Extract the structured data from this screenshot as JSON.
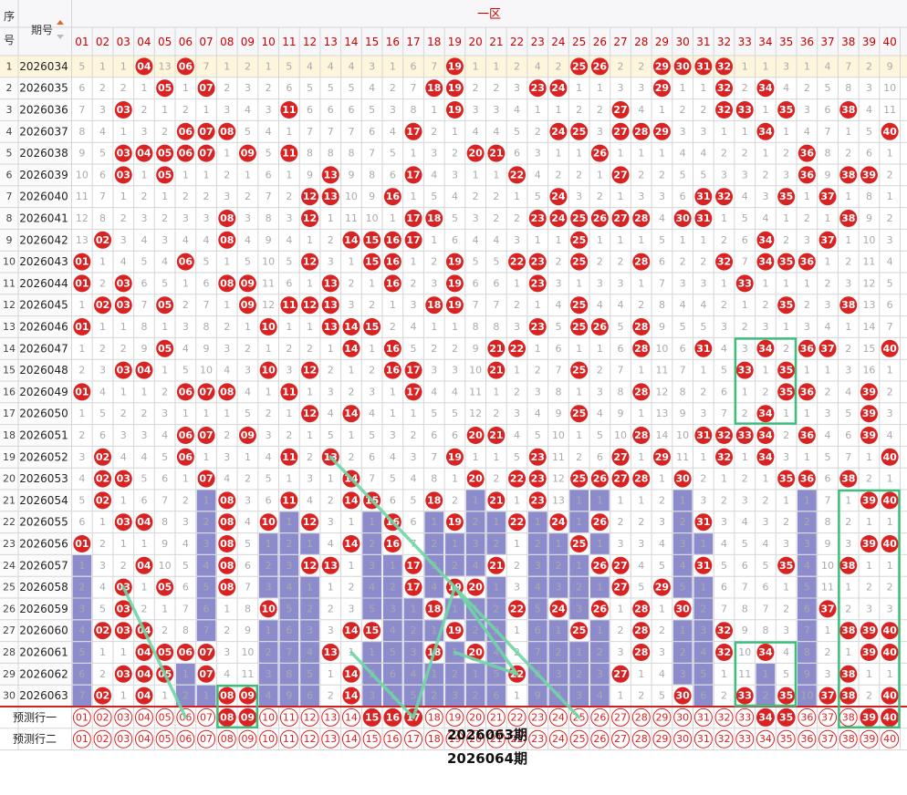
{
  "header": {
    "seq_label": "序号",
    "period_label": "期号",
    "zone_label": "一区",
    "predict_row_1": "预测行一",
    "predict_row_2": "预测行二",
    "annotation_1": "2026063期",
    "annotation_2": "2026064期"
  },
  "colors": {
    "ball_red": "#d92222",
    "bar_blue": "#8c8ccc",
    "zone_red": "#cc0000",
    "box_green": "#3cbf7a",
    "line_green": "#6fd6a6",
    "grid": "#d6d6d6",
    "miss_text": "#aaaaaa"
  },
  "chart_data": {
    "type": "table",
    "columns": [
      "01",
      "02",
      "03",
      "04",
      "05",
      "06",
      "07",
      "08",
      "09",
      "10",
      "11",
      "12",
      "13",
      "14",
      "15",
      "16",
      "17",
      "18",
      "19",
      "20",
      "21",
      "22",
      "23",
      "24",
      "25",
      "26",
      "27",
      "28",
      "29",
      "30",
      "31",
      "32",
      "33",
      "34",
      "35",
      "36",
      "37",
      "38",
      "39",
      "40"
    ],
    "rows": [
      {
        "seq": "1",
        "period": "2026034",
        "cells": [
          5,
          1,
          1,
          0,
          13,
          0,
          7,
          1,
          2,
          1,
          5,
          4,
          4,
          4,
          3,
          1,
          6,
          7,
          0,
          1,
          1,
          2,
          4,
          2,
          0,
          0,
          2,
          2,
          0,
          0,
          0,
          0,
          1,
          1,
          3,
          1,
          4,
          7,
          2,
          9
        ]
      },
      {
        "seq": "2",
        "period": "2026035",
        "cells": [
          6,
          2,
          2,
          1,
          0,
          1,
          0,
          2,
          3,
          2,
          6,
          5,
          5,
          5,
          4,
          2,
          7,
          0,
          0,
          2,
          2,
          3,
          0,
          0,
          1,
          1,
          3,
          3,
          0,
          1,
          1,
          0,
          2,
          0,
          4,
          2,
          5,
          8,
          3,
          10
        ]
      },
      {
        "seq": "3",
        "period": "2026036",
        "cells": [
          7,
          3,
          0,
          2,
          1,
          2,
          1,
          3,
          4,
          3,
          0,
          6,
          6,
          6,
          5,
          3,
          8,
          1,
          0,
          3,
          3,
          4,
          1,
          1,
          2,
          2,
          0,
          4,
          1,
          2,
          2,
          0,
          0,
          1,
          0,
          3,
          6,
          0,
          4,
          11
        ]
      },
      {
        "seq": "4",
        "period": "2026037",
        "cells": [
          8,
          4,
          1,
          3,
          2,
          0,
          0,
          0,
          5,
          4,
          1,
          7,
          7,
          7,
          6,
          4,
          0,
          2,
          1,
          4,
          4,
          5,
          2,
          0,
          0,
          3,
          0,
          0,
          0,
          3,
          3,
          1,
          1,
          0,
          1,
          4,
          7,
          1,
          5,
          0
        ]
      },
      {
        "seq": "5",
        "period": "2026038",
        "cells": [
          9,
          5,
          0,
          0,
          0,
          0,
          0,
          1,
          0,
          5,
          0,
          8,
          8,
          8,
          7,
          5,
          1,
          3,
          2,
          0,
          0,
          6,
          3,
          1,
          1,
          0,
          1,
          1,
          1,
          4,
          4,
          2,
          2,
          1,
          2,
          0,
          8,
          2,
          6,
          1
        ]
      },
      {
        "seq": "6",
        "period": "2026039",
        "cells": [
          10,
          6,
          0,
          1,
          0,
          1,
          1,
          2,
          1,
          6,
          1,
          9,
          0,
          9,
          8,
          6,
          0,
          4,
          3,
          1,
          1,
          0,
          4,
          2,
          2,
          1,
          0,
          2,
          2,
          5,
          5,
          3,
          3,
          2,
          3,
          0,
          9,
          0,
          0,
          2
        ]
      },
      {
        "seq": "7",
        "period": "2026040",
        "cells": [
          11,
          7,
          1,
          2,
          1,
          2,
          2,
          3,
          2,
          7,
          2,
          0,
          0,
          10,
          9,
          0,
          1,
          5,
          4,
          2,
          2,
          1,
          5,
          0,
          3,
          2,
          1,
          3,
          3,
          6,
          0,
          0,
          4,
          3,
          0,
          1,
          0,
          1,
          8,
          1
        ]
      },
      {
        "seq": "8",
        "period": "2026041",
        "cells": [
          12,
          8,
          2,
          3,
          2,
          3,
          3,
          0,
          3,
          8,
          3,
          0,
          1,
          11,
          10,
          1,
          0,
          0,
          5,
          3,
          2,
          2,
          0,
          0,
          0,
          0,
          0,
          0,
          4,
          0,
          0,
          1,
          5,
          4,
          1,
          2,
          1,
          0,
          9,
          2
        ]
      },
      {
        "seq": "9",
        "period": "2026042",
        "cells": [
          13,
          0,
          3,
          4,
          3,
          4,
          4,
          0,
          4,
          9,
          4,
          1,
          2,
          0,
          0,
          0,
          0,
          1,
          6,
          4,
          4,
          3,
          1,
          1,
          0,
          1,
          1,
          1,
          5,
          1,
          1,
          2,
          6,
          0,
          2,
          3,
          0,
          1,
          10,
          3
        ]
      },
      {
        "seq": "10",
        "period": "2026043",
        "cells": [
          0,
          1,
          4,
          5,
          4,
          0,
          5,
          1,
          5,
          10,
          5,
          0,
          3,
          1,
          0,
          0,
          1,
          2,
          0,
          5,
          5,
          0,
          0,
          2,
          0,
          2,
          2,
          0,
          6,
          2,
          2,
          0,
          7,
          0,
          0,
          0,
          1,
          2,
          11,
          4
        ]
      },
      {
        "seq": "11",
        "period": "2026044",
        "cells": [
          0,
          2,
          0,
          6,
          5,
          1,
          6,
          0,
          0,
          11,
          6,
          1,
          0,
          2,
          1,
          0,
          2,
          3,
          0,
          6,
          6,
          1,
          0,
          3,
          1,
          3,
          3,
          1,
          7,
          3,
          3,
          1,
          0,
          1,
          1,
          1,
          2,
          3,
          12,
          5
        ]
      },
      {
        "seq": "12",
        "period": "2026045",
        "cells": [
          1,
          0,
          0,
          7,
          0,
          2,
          7,
          1,
          0,
          12,
          0,
          0,
          0,
          3,
          2,
          1,
          3,
          0,
          0,
          7,
          7,
          2,
          1,
          4,
          0,
          4,
          4,
          2,
          8,
          4,
          4,
          2,
          1,
          2,
          0,
          2,
          3,
          0,
          13,
          6
        ]
      },
      {
        "seq": "13",
        "period": "2026046",
        "cells": [
          0,
          1,
          1,
          8,
          1,
          3,
          8,
          2,
          1,
          0,
          1,
          1,
          0,
          0,
          0,
          2,
          4,
          1,
          1,
          8,
          8,
          3,
          0,
          5,
          0,
          0,
          5,
          0,
          9,
          5,
          5,
          3,
          2,
          3,
          1,
          3,
          4,
          1,
          14,
          7
        ]
      },
      {
        "seq": "14",
        "period": "2026047",
        "cells": [
          1,
          2,
          2,
          9,
          0,
          4,
          9,
          3,
          2,
          1,
          2,
          2,
          1,
          0,
          1,
          0,
          5,
          2,
          2,
          9,
          0,
          0,
          1,
          6,
          1,
          1,
          6,
          0,
          10,
          6,
          0,
          4,
          3,
          0,
          2,
          0,
          0,
          2,
          15,
          0
        ]
      },
      {
        "seq": "15",
        "period": "2026048",
        "cells": [
          2,
          3,
          0,
          0,
          1,
          5,
          10,
          4,
          3,
          0,
          3,
          0,
          2,
          1,
          2,
          0,
          0,
          3,
          3,
          10,
          0,
          1,
          2,
          7,
          0,
          2,
          7,
          1,
          11,
          7,
          1,
          5,
          0,
          1,
          0,
          1,
          1,
          3,
          16,
          1
        ]
      },
      {
        "seq": "16",
        "period": "2026049",
        "cells": [
          0,
          4,
          1,
          1,
          2,
          0,
          0,
          0,
          4,
          1,
          0,
          1,
          3,
          2,
          3,
          1,
          0,
          4,
          4,
          11,
          1,
          2,
          3,
          8,
          1,
          3,
          8,
          0,
          12,
          8,
          2,
          6,
          1,
          2,
          0,
          0,
          2,
          4,
          0,
          2
        ]
      },
      {
        "seq": "17",
        "period": "2026050",
        "cells": [
          1,
          5,
          2,
          2,
          3,
          1,
          1,
          1,
          5,
          2,
          1,
          0,
          4,
          0,
          4,
          1,
          1,
          5,
          5,
          12,
          2,
          3,
          4,
          9,
          0,
          4,
          9,
          1,
          13,
          9,
          3,
          7,
          2,
          0,
          1,
          1,
          3,
          5,
          0,
          3
        ]
      },
      {
        "seq": "18",
        "period": "2026051",
        "cells": [
          2,
          6,
          3,
          3,
          4,
          0,
          0,
          2,
          0,
          3,
          2,
          1,
          5,
          1,
          5,
          3,
          2,
          6,
          6,
          0,
          0,
          4,
          5,
          10,
          1,
          5,
          10,
          0,
          14,
          10,
          0,
          0,
          0,
          0,
          2,
          0,
          4,
          6,
          0,
          4
        ]
      },
      {
        "seq": "19",
        "period": "2026052",
        "cells": [
          3,
          0,
          4,
          4,
          5,
          0,
          1,
          3,
          1,
          4,
          0,
          2,
          0,
          2,
          6,
          4,
          3,
          7,
          0,
          1,
          1,
          5,
          0,
          11,
          2,
          6,
          0,
          1,
          0,
          11,
          1,
          0,
          1,
          0,
          3,
          1,
          5,
          7,
          1,
          0
        ]
      },
      {
        "seq": "20",
        "period": "2026053",
        "cells": [
          4,
          0,
          0,
          5,
          6,
          1,
          0,
          4,
          2,
          5,
          1,
          3,
          1,
          0,
          7,
          5,
          4,
          8,
          1,
          0,
          2,
          0,
          0,
          12,
          0,
          0,
          0,
          0,
          1,
          0,
          2,
          1,
          2,
          1,
          0,
          0,
          6,
          0,
          2,
          1
        ]
      },
      {
        "seq": "21",
        "period": "2026054",
        "cells": [
          5,
          0,
          1,
          6,
          7,
          2,
          1,
          0,
          3,
          6,
          0,
          4,
          2,
          0,
          0,
          6,
          5,
          0,
          2,
          1,
          0,
          1,
          0,
          13,
          1,
          1,
          1,
          1,
          2,
          1,
          3,
          2,
          3,
          2,
          1,
          1,
          7,
          1,
          0,
          0
        ]
      },
      {
        "seq": "22",
        "period": "2026055",
        "cells": [
          6,
          1,
          0,
          0,
          8,
          3,
          2,
          0,
          4,
          0,
          1,
          0,
          3,
          1,
          1,
          0,
          6,
          1,
          0,
          2,
          1,
          0,
          1,
          0,
          1,
          0,
          2,
          2,
          3,
          2,
          0,
          3,
          4,
          3,
          2,
          2,
          8,
          2,
          1,
          1
        ]
      },
      {
        "seq": "23",
        "period": "2026056",
        "cells": [
          0,
          2,
          1,
          1,
          9,
          4,
          3,
          0,
          5,
          1,
          2,
          1,
          4,
          0,
          2,
          0,
          7,
          2,
          1,
          3,
          2,
          1,
          2,
          1,
          0,
          1,
          3,
          3,
          4,
          3,
          1,
          4,
          5,
          4,
          3,
          3,
          9,
          3,
          0,
          0
        ]
      },
      {
        "seq": "24",
        "period": "2026057",
        "cells": [
          1,
          3,
          2,
          0,
          10,
          5,
          4,
          0,
          6,
          2,
          3,
          0,
          0,
          1,
          3,
          1,
          0,
          3,
          2,
          4,
          0,
          2,
          3,
          2,
          1,
          0,
          0,
          4,
          5,
          4,
          0,
          5,
          6,
          5,
          0,
          4,
          10,
          0,
          1,
          1
        ]
      },
      {
        "seq": "25",
        "period": "2026058",
        "cells": [
          2,
          4,
          0,
          1,
          0,
          6,
          5,
          0,
          7,
          3,
          4,
          1,
          1,
          2,
          4,
          2,
          0,
          4,
          0,
          0,
          1,
          3,
          4,
          3,
          2,
          1,
          0,
          5,
          0,
          5,
          1,
          6,
          7,
          6,
          1,
          5,
          11,
          1,
          2,
          2
        ]
      },
      {
        "seq": "26",
        "period": "2026059",
        "cells": [
          3,
          5,
          0,
          2,
          1,
          7,
          6,
          1,
          8,
          0,
          5,
          2,
          2,
          3,
          5,
          3,
          1,
          0,
          1,
          1,
          2,
          0,
          5,
          0,
          3,
          0,
          1,
          0,
          1,
          0,
          2,
          7,
          8,
          7,
          2,
          6,
          0,
          2,
          3,
          3
        ]
      },
      {
        "seq": "27",
        "period": "2026060",
        "cells": [
          4,
          0,
          0,
          0,
          2,
          8,
          7,
          2,
          9,
          1,
          6,
          3,
          3,
          0,
          0,
          4,
          2,
          1,
          0,
          2,
          3,
          1,
          6,
          1,
          0,
          1,
          2,
          0,
          2,
          1,
          3,
          0,
          9,
          8,
          3,
          7,
          1,
          0,
          0,
          0
        ]
      },
      {
        "seq": "28",
        "period": "2026061",
        "cells": [
          5,
          1,
          1,
          0,
          0,
          0,
          0,
          3,
          10,
          2,
          7,
          4,
          0,
          1,
          1,
          5,
          3,
          0,
          1,
          0,
          4,
          2,
          7,
          2,
          1,
          2,
          3,
          0,
          3,
          2,
          4,
          0,
          10,
          0,
          4,
          8,
          2,
          1,
          0,
          0
        ]
      },
      {
        "seq": "29",
        "period": "2026062",
        "cells": [
          6,
          2,
          0,
          0,
          0,
          1,
          0,
          4,
          11,
          3,
          8,
          5,
          1,
          0,
          2,
          6,
          4,
          1,
          2,
          1,
          5,
          0,
          8,
          3,
          2,
          3,
          0,
          1,
          4,
          3,
          5,
          1,
          11,
          1,
          5,
          9,
          3,
          0,
          1,
          1
        ]
      },
      {
        "seq": "30",
        "period": "2026063",
        "cells": [
          7,
          0,
          1,
          0,
          1,
          2,
          1,
          0,
          0,
          4,
          9,
          6,
          2,
          0,
          3,
          1,
          5,
          2,
          3,
          2,
          6,
          1,
          9,
          4,
          3,
          4,
          1,
          2,
          5,
          0,
          6,
          2,
          0,
          2,
          0,
          10,
          0,
          0,
          2,
          0
        ]
      }
    ],
    "predict_row_1": [
      "08",
      "09",
      "15",
      "16",
      "17",
      "34",
      "35",
      "39",
      "40"
    ],
    "predict_row_2": []
  }
}
